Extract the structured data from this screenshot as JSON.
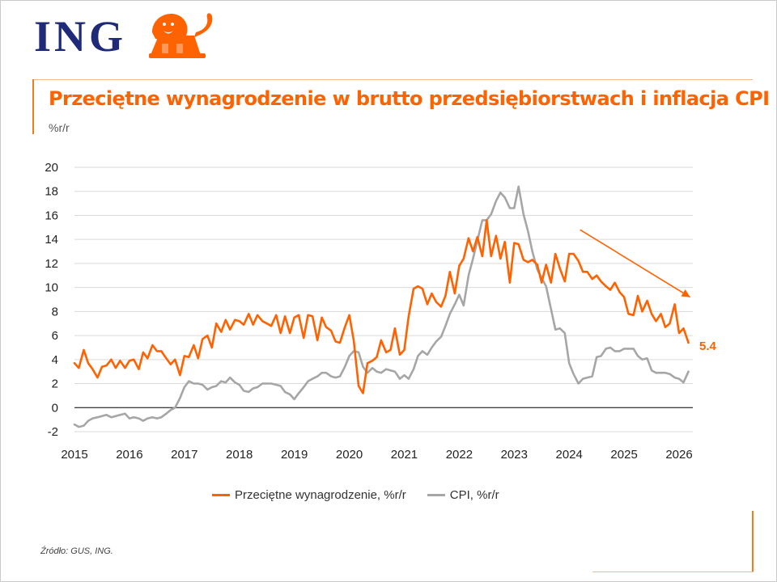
{
  "header": {
    "logo_text": "ING",
    "title": "Przeciętne wynagrodzenie w brutto przedsiębiorstwach i inflacja CPI",
    "unit_label": "%r/r"
  },
  "colors": {
    "wage": "#ff6200",
    "cpi": "#a6a6a6",
    "title": "#ff6200",
    "logo": "#1f2a78"
  },
  "legend": {
    "wage_label": "Przeciętne wynagrodzenie, %r/r",
    "cpi_label": "CPI, %r/r"
  },
  "source": "Źródło: GUS, ING.",
  "chart_data": {
    "type": "line",
    "title": "Przeciętne wynagrodzenie w brutto przedsiębiorstwach i inflacja CPI",
    "ylabel": "%r/r",
    "ylim": [
      -2,
      20
    ],
    "yticks": [
      "-2",
      "0",
      "2",
      "4",
      "6",
      "8",
      "10",
      "12",
      "14",
      "16",
      "18",
      "20"
    ],
    "xlim": [
      2015.0,
      2026.25
    ],
    "xticks": [
      "2015",
      "2016",
      "2017",
      "2018",
      "2019",
      "2020",
      "2021",
      "2022",
      "2023",
      "2024",
      "2025",
      "2026"
    ],
    "grid": "horizontal",
    "legend_position": "bottom",
    "last_value_label": "5.4",
    "trend_arrow": {
      "from": [
        2024.2,
        14.8
      ],
      "to": [
        2026.2,
        9.2
      ]
    },
    "series": [
      {
        "name": "Przeciętne wynagrodzenie, %r/r",
        "x": [
          2015.0,
          2015.08,
          2015.17,
          2015.25,
          2015.33,
          2015.42,
          2015.5,
          2015.58,
          2015.67,
          2015.75,
          2015.83,
          2015.92,
          2016.0,
          2016.08,
          2016.17,
          2016.25,
          2016.33,
          2016.42,
          2016.5,
          2016.58,
          2016.67,
          2016.75,
          2016.83,
          2016.92,
          2017.0,
          2017.08,
          2017.17,
          2017.25,
          2017.33,
          2017.42,
          2017.5,
          2017.58,
          2017.67,
          2017.75,
          2017.83,
          2017.92,
          2018.0,
          2018.08,
          2018.17,
          2018.25,
          2018.33,
          2018.42,
          2018.5,
          2018.58,
          2018.67,
          2018.75,
          2018.83,
          2018.92,
          2019.0,
          2019.08,
          2019.17,
          2019.25,
          2019.33,
          2019.42,
          2019.5,
          2019.58,
          2019.67,
          2019.75,
          2019.83,
          2019.92,
          2020.0,
          2020.08,
          2020.17,
          2020.25,
          2020.33,
          2020.42,
          2020.5,
          2020.58,
          2020.67,
          2020.75,
          2020.83,
          2020.92,
          2021.0,
          2021.08,
          2021.17,
          2021.25,
          2021.33,
          2021.42,
          2021.5,
          2021.58,
          2021.67,
          2021.75,
          2021.83,
          2021.92,
          2022.0,
          2022.08,
          2022.17,
          2022.25,
          2022.33,
          2022.42,
          2022.5,
          2022.58,
          2022.67,
          2022.75,
          2022.83,
          2022.92,
          2023.0,
          2023.08,
          2023.17,
          2023.25,
          2023.33,
          2023.42,
          2023.5,
          2023.58,
          2023.67,
          2023.75,
          2023.83,
          2023.92,
          2024.0,
          2024.08,
          2024.17,
          2024.25,
          2024.33,
          2024.42,
          2024.5,
          2024.58,
          2024.67,
          2024.75,
          2024.83,
          2024.92,
          2025.0,
          2025.08,
          2025.17,
          2025.25,
          2025.33,
          2025.42,
          2025.5,
          2025.58,
          2025.67,
          2025.75,
          2025.83,
          2025.92,
          2026.0,
          2026.08,
          2026.17
        ],
        "values": [
          3.7,
          3.3,
          4.8,
          3.7,
          3.2,
          2.5,
          3.4,
          3.5,
          4.0,
          3.3,
          3.9,
          3.3,
          3.9,
          4.0,
          3.2,
          4.6,
          4.1,
          5.2,
          4.7,
          4.7,
          4.1,
          3.6,
          4.0,
          2.7,
          4.3,
          4.2,
          5.2,
          4.1,
          5.7,
          6.0,
          5.0,
          7.0,
          6.3,
          7.3,
          6.5,
          7.3,
          7.2,
          6.9,
          7.8,
          6.9,
          7.7,
          7.2,
          7.0,
          6.8,
          7.7,
          6.2,
          7.6,
          6.2,
          7.5,
          7.7,
          5.8,
          7.7,
          7.6,
          5.6,
          7.5,
          6.7,
          6.4,
          5.5,
          5.4,
          6.7,
          7.7,
          5.6,
          1.8,
          1.2,
          3.7,
          3.9,
          4.2,
          5.6,
          4.6,
          4.8,
          6.6,
          4.4,
          4.8,
          7.6,
          9.9,
          10.1,
          9.9,
          8.6,
          9.5,
          8.8,
          8.4,
          9.3,
          11.3,
          9.5,
          11.8,
          12.4,
          14.1,
          13.0,
          14.2,
          12.6,
          15.6,
          12.6,
          14.3,
          12.4,
          13.8,
          10.4,
          13.7,
          13.6,
          12.3,
          12.1,
          12.3,
          11.9,
          10.4,
          11.9,
          10.4,
          12.8,
          11.6,
          10.5,
          12.8,
          12.8,
          12.2,
          11.3,
          11.3,
          10.7,
          11.0,
          10.5,
          10.1,
          9.8,
          10.4,
          9.6,
          9.2,
          7.8,
          7.7,
          9.3,
          8.0,
          8.9,
          7.8,
          7.2,
          7.8,
          6.7,
          7.0,
          8.6,
          6.2,
          6.6,
          5.4
        ]
      },
      {
        "name": "CPI, %r/r",
        "x": [
          2015.0,
          2015.08,
          2015.17,
          2015.25,
          2015.33,
          2015.42,
          2015.5,
          2015.58,
          2015.67,
          2015.75,
          2015.83,
          2015.92,
          2016.0,
          2016.08,
          2016.17,
          2016.25,
          2016.33,
          2016.42,
          2016.5,
          2016.58,
          2016.67,
          2016.75,
          2016.83,
          2016.92,
          2017.0,
          2017.08,
          2017.17,
          2017.25,
          2017.33,
          2017.42,
          2017.5,
          2017.58,
          2017.67,
          2017.75,
          2017.83,
          2017.92,
          2018.0,
          2018.08,
          2018.17,
          2018.25,
          2018.33,
          2018.42,
          2018.5,
          2018.58,
          2018.67,
          2018.75,
          2018.83,
          2018.92,
          2019.0,
          2019.08,
          2019.17,
          2019.25,
          2019.33,
          2019.42,
          2019.5,
          2019.58,
          2019.67,
          2019.75,
          2019.83,
          2019.92,
          2020.0,
          2020.08,
          2020.17,
          2020.25,
          2020.33,
          2020.42,
          2020.5,
          2020.58,
          2020.67,
          2020.75,
          2020.83,
          2020.92,
          2021.0,
          2021.08,
          2021.17,
          2021.25,
          2021.33,
          2021.42,
          2021.5,
          2021.58,
          2021.67,
          2021.75,
          2021.83,
          2021.92,
          2022.0,
          2022.08,
          2022.17,
          2022.25,
          2022.33,
          2022.42,
          2022.5,
          2022.58,
          2022.67,
          2022.75,
          2022.83,
          2022.92,
          2023.0,
          2023.08,
          2023.17,
          2023.25,
          2023.33,
          2023.42,
          2023.5,
          2023.58,
          2023.67,
          2023.75,
          2023.83,
          2023.92,
          2024.0,
          2024.08,
          2024.17,
          2024.25,
          2024.33,
          2024.42,
          2024.5,
          2024.58,
          2024.67,
          2024.75,
          2024.83,
          2024.92,
          2025.0,
          2025.08,
          2025.17,
          2025.25,
          2025.33,
          2025.42,
          2025.5,
          2025.58,
          2025.67,
          2025.75,
          2025.83,
          2025.92,
          2026.0,
          2026.08,
          2026.17
        ],
        "values": [
          -1.4,
          -1.6,
          -1.5,
          -1.1,
          -0.9,
          -0.8,
          -0.7,
          -0.6,
          -0.8,
          -0.7,
          -0.6,
          -0.5,
          -0.9,
          -0.8,
          -0.9,
          -1.1,
          -0.9,
          -0.8,
          -0.9,
          -0.8,
          -0.5,
          -0.2,
          0.0,
          0.8,
          1.7,
          2.2,
          2.0,
          2.0,
          1.9,
          1.5,
          1.7,
          1.8,
          2.2,
          2.1,
          2.5,
          2.1,
          1.9,
          1.4,
          1.3,
          1.6,
          1.7,
          2.0,
          2.0,
          2.0,
          1.9,
          1.8,
          1.3,
          1.1,
          0.7,
          1.2,
          1.7,
          2.2,
          2.4,
          2.6,
          2.9,
          2.9,
          2.6,
          2.5,
          2.6,
          3.4,
          4.3,
          4.7,
          4.6,
          3.4,
          2.9,
          3.3,
          3.0,
          2.9,
          3.2,
          3.1,
          3.0,
          2.4,
          2.7,
          2.4,
          3.2,
          4.3,
          4.7,
          4.4,
          5.0,
          5.5,
          5.9,
          6.8,
          7.8,
          8.6,
          9.4,
          8.5,
          11.0,
          12.4,
          13.9,
          15.6,
          15.6,
          16.1,
          17.2,
          17.9,
          17.5,
          16.6,
          16.6,
          18.4,
          16.1,
          14.7,
          13.0,
          11.5,
          10.8,
          10.1,
          8.2,
          6.5,
          6.6,
          6.2,
          3.7,
          2.8,
          2.0,
          2.4,
          2.5,
          2.6,
          4.2,
          4.3,
          4.9,
          5.0,
          4.7,
          4.7,
          4.9,
          4.9,
          4.9,
          4.3,
          4.0,
          4.1,
          3.1,
          2.9,
          2.9,
          2.9,
          2.8,
          2.5,
          2.4,
          2.1,
          3.0
        ]
      }
    ]
  }
}
